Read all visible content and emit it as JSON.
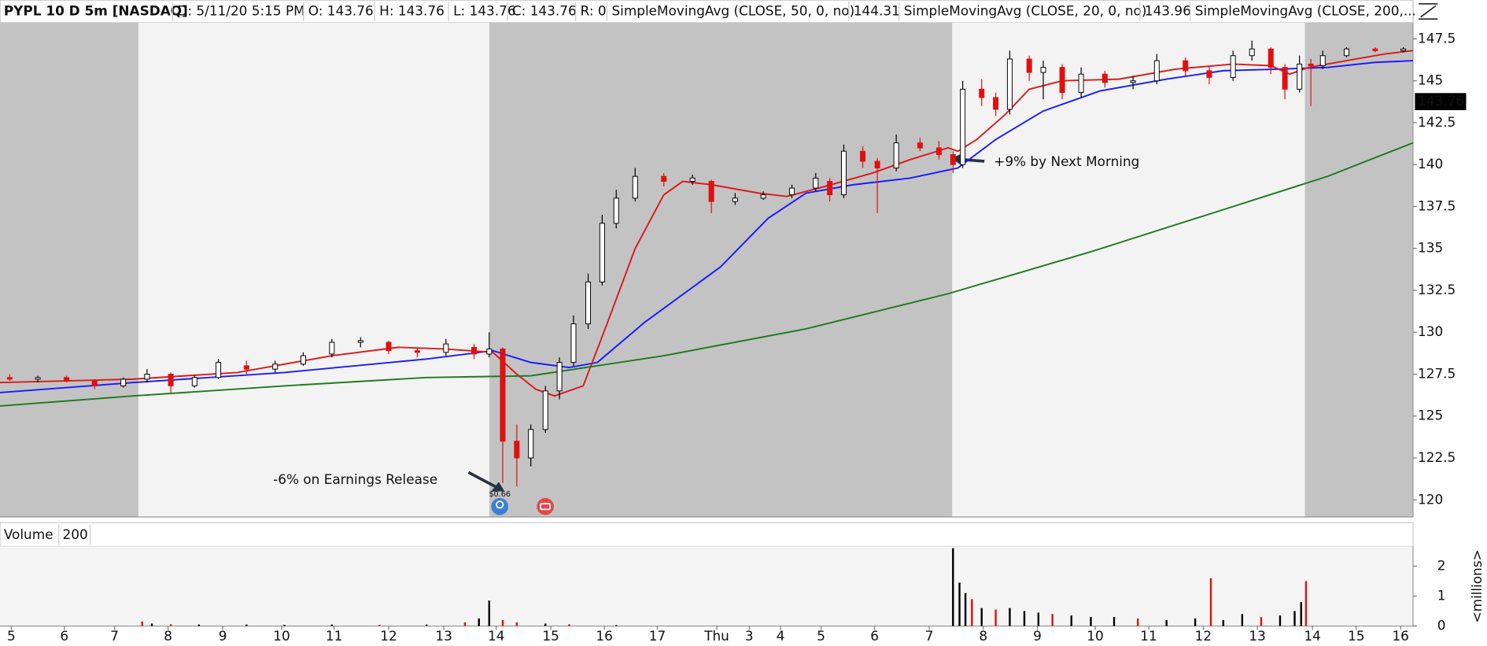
{
  "chart_data": {
    "type": "candlestick",
    "title": "PYPL 10 D 5m [NASDAQ]",
    "header_fields": [
      "D: 5/11/20 5:15 PM",
      "O: 143.76",
      "H: 143.76",
      "L: 143.76",
      "C: 143.76",
      "R: 0"
    ],
    "xlim": [
      0,
      26.14
    ],
    "xticks": [
      {
        "value": 0.21,
        "label": "5"
      },
      {
        "value": 1.19,
        "label": "6"
      },
      {
        "value": 2.12,
        "label": "7"
      },
      {
        "value": 3.11,
        "label": "8"
      },
      {
        "value": 4.12,
        "label": "9"
      },
      {
        "value": 5.21,
        "label": "10"
      },
      {
        "value": 6.18,
        "label": "11"
      },
      {
        "value": 7.19,
        "label": "12"
      },
      {
        "value": 8.21,
        "label": "13"
      },
      {
        "value": 9.18,
        "label": "14"
      },
      {
        "value": 10.19,
        "label": "15"
      },
      {
        "value": 11.18,
        "label": "16"
      },
      {
        "value": 12.16,
        "label": "17"
      },
      {
        "value": 13.26,
        "label": "Thu"
      },
      {
        "value": 13.86,
        "label": "3"
      },
      {
        "value": 14.44,
        "label": "4"
      },
      {
        "value": 15.19,
        "label": "5"
      },
      {
        "value": 16.18,
        "label": "6"
      },
      {
        "value": 17.19,
        "label": "7"
      },
      {
        "value": 18.19,
        "label": "8"
      },
      {
        "value": 19.19,
        "label": "9"
      },
      {
        "value": 20.26,
        "label": "10"
      },
      {
        "value": 21.25,
        "label": "11"
      },
      {
        "value": 22.26,
        "label": "12"
      },
      {
        "value": 23.26,
        "label": "13"
      },
      {
        "value": 24.28,
        "label": "14"
      },
      {
        "value": 25.09,
        "label": "15"
      },
      {
        "value": 25.91,
        "label": "16"
      }
    ],
    "ylim": [
      118.98,
      148.46
    ],
    "yticks": [
      120,
      122.5,
      125,
      127.5,
      130,
      132.5,
      135,
      137.5,
      140,
      142.5,
      145,
      147.5
    ],
    "last_price": 143.76,
    "candles": {
      "up_color": "#000000",
      "down_color": "#e01010",
      "x": [
        0.18,
        0.7,
        1.23,
        1.75,
        2.28,
        2.72,
        3.16,
        3.6,
        4.04,
        4.56,
        5.09,
        5.61,
        6.14,
        6.67,
        7.19,
        7.72,
        8.25,
        8.77,
        9.05,
        9.3,
        9.56,
        9.82,
        10.09,
        10.35,
        10.61,
        10.88,
        11.14,
        11.4,
        11.75,
        12.28,
        12.81,
        13.16,
        13.6,
        14.12,
        14.65,
        15.09,
        15.35,
        15.61,
        15.96,
        16.23,
        16.58,
        17.02,
        17.37,
        17.63,
        17.81,
        18.16,
        18.42,
        18.68,
        19.04,
        19.3,
        19.65,
        20.0,
        20.44,
        20.96,
        21.4,
        21.93,
        22.37,
        22.81,
        23.16,
        23.51,
        23.77,
        24.04,
        24.25,
        24.47,
        24.91,
        25.44,
        25.96
      ],
      "open": [
        127.3,
        127.2,
        127.3,
        127.1,
        126.8,
        127.2,
        127.5,
        126.8,
        127.3,
        128.0,
        127.8,
        128.1,
        128.7,
        129.4,
        129.4,
        128.9,
        128.8,
        129.1,
        128.7,
        129.0,
        123.5,
        122.5,
        124.2,
        126.5,
        128.2,
        130.5,
        133.0,
        136.5,
        138.0,
        139.3,
        139.0,
        139.0,
        137.8,
        138.0,
        138.2,
        138.6,
        139.0,
        138.2,
        140.8,
        140.2,
        139.8,
        141.3,
        141.0,
        140.6,
        140.0,
        144.5,
        144.0,
        143.3,
        146.3,
        145.5,
        145.8,
        144.3,
        145.4,
        144.9,
        145.0,
        146.2,
        145.6,
        145.2,
        146.5,
        146.9,
        145.8,
        144.5,
        146.0,
        145.9,
        146.5,
        146.9,
        146.8
      ],
      "high": [
        127.5,
        127.4,
        127.4,
        127.2,
        127.3,
        127.8,
        127.6,
        127.4,
        128.4,
        128.3,
        128.3,
        128.8,
        129.6,
        129.7,
        129.5,
        129.1,
        129.6,
        129.3,
        130.0,
        129.1,
        124.5,
        124.5,
        126.8,
        128.5,
        131.0,
        133.5,
        137.0,
        138.5,
        139.8,
        139.5,
        139.4,
        139.1,
        138.3,
        138.4,
        138.8,
        139.5,
        139.2,
        141.2,
        141.1,
        140.4,
        141.8,
        141.6,
        141.4,
        140.8,
        145.0,
        145.1,
        144.3,
        146.8,
        146.5,
        146.2,
        146.0,
        145.8,
        145.6,
        145.3,
        146.6,
        146.4,
        145.9,
        146.8,
        147.4,
        147.0,
        146.0,
        146.5,
        146.3,
        146.8,
        147.0,
        147.0,
        147.0
      ],
      "low": [
        127.1,
        127.0,
        127.0,
        126.6,
        126.7,
        127.0,
        126.4,
        126.7,
        127.2,
        127.5,
        127.6,
        128.0,
        128.5,
        129.1,
        128.7,
        128.5,
        128.6,
        128.4,
        128.5,
        121.0,
        120.8,
        122.0,
        124.0,
        126.0,
        128.0,
        130.2,
        132.8,
        136.2,
        137.8,
        138.7,
        138.8,
        137.1,
        137.6,
        137.9,
        138.0,
        138.4,
        137.8,
        138.0,
        139.8,
        137.1,
        139.6,
        140.8,
        140.3,
        139.5,
        139.8,
        143.5,
        142.9,
        143.0,
        145.0,
        143.9,
        143.9,
        144.0,
        144.6,
        144.5,
        144.8,
        145.3,
        144.8,
        145.0,
        146.2,
        145.4,
        143.9,
        144.3,
        143.5,
        145.7,
        146.4,
        146.7,
        146.7
      ],
      "close": [
        127.2,
        127.3,
        127.1,
        126.8,
        127.2,
        127.5,
        126.8,
        127.3,
        128.2,
        127.8,
        128.1,
        128.6,
        129.4,
        129.5,
        128.9,
        128.8,
        129.3,
        128.7,
        129.0,
        123.5,
        122.5,
        124.2,
        126.5,
        128.2,
        130.5,
        133.0,
        136.5,
        138.0,
        139.3,
        139.0,
        139.2,
        137.8,
        138.0,
        138.2,
        138.6,
        139.2,
        138.2,
        140.8,
        140.2,
        139.8,
        141.3,
        141.0,
        140.6,
        140.0,
        144.5,
        144.0,
        143.3,
        146.3,
        145.5,
        145.8,
        144.3,
        145.4,
        144.9,
        145.0,
        146.2,
        145.6,
        145.2,
        146.5,
        146.9,
        145.8,
        144.5,
        146.0,
        145.9,
        146.5,
        146.9,
        146.8,
        146.9
      ]
    },
    "series": [
      {
        "name": "SimpleMovingAvg (CLOSE, 50, 0, no)",
        "color": "#1a1aff",
        "last_value": 144.31,
        "x": [
          0,
          2.46,
          5.26,
          7.89,
          9.12,
          9.82,
          10.53,
          11.05,
          11.93,
          13.33,
          14.21,
          14.91,
          15.79,
          16.84,
          17.72,
          18.42,
          19.3,
          20.35,
          21.58,
          22.63,
          23.68,
          24.56,
          25.44,
          26.14
        ],
        "values": [
          126.4,
          127.0,
          127.6,
          128.4,
          128.9,
          128.2,
          127.9,
          128.2,
          130.6,
          133.9,
          136.8,
          138.3,
          138.8,
          139.2,
          139.8,
          141.5,
          143.2,
          144.4,
          145.1,
          145.6,
          145.7,
          145.8,
          146.1,
          146.2
        ]
      },
      {
        "name": "SimpleMovingAvg (CLOSE, 20, 0, no)",
        "color": "#d81b1b",
        "last_value": 143.96,
        "x": [
          0,
          2.46,
          4.39,
          6.14,
          7.37,
          8.25,
          9.12,
          9.56,
          9.91,
          10.26,
          10.79,
          11.23,
          11.75,
          12.28,
          12.63,
          13.16,
          14.04,
          14.56,
          15.26,
          16.14,
          16.84,
          17.54,
          17.72,
          18.07,
          18.6,
          19.04,
          19.65,
          20.7,
          21.75,
          22.81,
          23.51,
          23.86,
          24.21,
          24.91,
          25.61,
          26.14
        ],
        "values": [
          127.0,
          127.2,
          127.6,
          128.6,
          129.1,
          129.0,
          128.8,
          127.5,
          126.6,
          126.2,
          126.8,
          130.5,
          135.0,
          138.2,
          139.0,
          138.8,
          138.3,
          138.1,
          138.7,
          139.5,
          140.3,
          141.0,
          140.8,
          141.5,
          143.0,
          144.5,
          145.0,
          145.1,
          145.7,
          146.0,
          145.9,
          145.4,
          145.8,
          146.2,
          146.6,
          146.8
        ]
      },
      {
        "name": "SimpleMovingAvg (CLOSE, 200,...",
        "color": "#1e7a1e",
        "x": [
          0,
          2.46,
          5.26,
          7.89,
          9.82,
          12.28,
          14.91,
          17.54,
          20.18,
          22.81,
          24.56,
          26.14
        ],
        "values": [
          125.6,
          126.2,
          126.8,
          127.3,
          127.4,
          128.6,
          130.2,
          132.3,
          134.8,
          137.5,
          139.3,
          141.3
        ]
      }
    ],
    "annotations": [
      "-6% on Earnings Release",
      "+9% by Next Morning",
      "$0.66"
    ],
    "volume": {
      "title": "Volume",
      "setting": "200",
      "axis_label": "<millions>",
      "ylim": [
        0,
        2.63
      ],
      "yticks": [
        0,
        1,
        2
      ],
      "x": [
        2.63,
        2.81,
        3.16,
        3.68,
        4.56,
        5.26,
        6.14,
        7.02,
        7.89,
        8.6,
        8.86,
        9.05,
        9.3,
        9.56,
        10.09,
        10.53,
        11.4,
        17.63,
        17.75,
        17.86,
        17.98,
        18.16,
        18.42,
        18.68,
        18.95,
        19.21,
        19.47,
        19.82,
        20.18,
        20.61,
        21.05,
        21.58,
        22.11,
        22.4,
        22.63,
        22.98,
        23.33,
        23.68,
        23.95,
        24.07,
        24.16
      ],
      "values": [
        0.15,
        0.08,
        0.06,
        0.05,
        0.05,
        0.04,
        0.05,
        0.04,
        0.05,
        0.12,
        0.25,
        0.85,
        0.2,
        0.12,
        0.08,
        0.06,
        0.03,
        2.6,
        1.45,
        1.1,
        0.9,
        0.6,
        0.55,
        0.6,
        0.5,
        0.45,
        0.4,
        0.35,
        0.3,
        0.3,
        0.25,
        0.2,
        0.25,
        1.6,
        0.2,
        0.4,
        0.3,
        0.35,
        0.5,
        0.8,
        1.5
      ],
      "colors": [
        "#e01010",
        "#000000",
        "#e01010",
        "#000000",
        "#000000",
        "#000000",
        "#000000",
        "#e01010",
        "#000000",
        "#e01010",
        "#000000",
        "#000000",
        "#e01010",
        "#e01010",
        "#000000",
        "#e01010",
        "#000000",
        "#000000",
        "#000000",
        "#000000",
        "#e01010",
        "#000000",
        "#e01010",
        "#000000",
        "#000000",
        "#000000",
        "#e01010",
        "#000000",
        "#000000",
        "#000000",
        "#e01010",
        "#000000",
        "#000000",
        "#e01010",
        "#000000",
        "#000000",
        "#e01010",
        "#000000",
        "#000000",
        "#000000",
        "#e01010"
      ]
    }
  }
}
